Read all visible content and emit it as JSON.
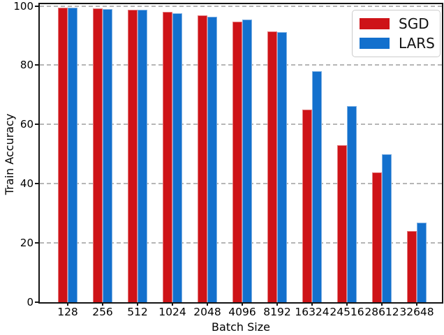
{
  "chart_data": {
    "type": "bar",
    "title": "",
    "xlabel": "Batch Size",
    "ylabel": "Train Accuracy",
    "categories": [
      "128",
      "256",
      "512",
      "1024",
      "2048",
      "4096",
      "8192",
      "16324",
      "24516",
      "28612",
      "32648"
    ],
    "series": [
      {
        "name": "SGD",
        "color": "#ce1318",
        "values": [
          99.4,
          99.2,
          98.7,
          98.0,
          96.8,
          94.8,
          91.5,
          65.0,
          52.9,
          43.8,
          24.0
        ]
      },
      {
        "name": "LARS",
        "color": "#1370cd",
        "values": [
          99.5,
          98.9,
          98.8,
          97.6,
          96.4,
          95.4,
          91.1,
          78.0,
          66.2,
          49.9,
          26.9
        ]
      }
    ],
    "ylim": [
      0,
      100
    ],
    "yticks": [
      0,
      20,
      40,
      60,
      80,
      100
    ],
    "grid": "horizontal-dashed",
    "grid_color": "#b6b6b6",
    "legend_position": "upper-right",
    "axis_color": "#151515"
  }
}
